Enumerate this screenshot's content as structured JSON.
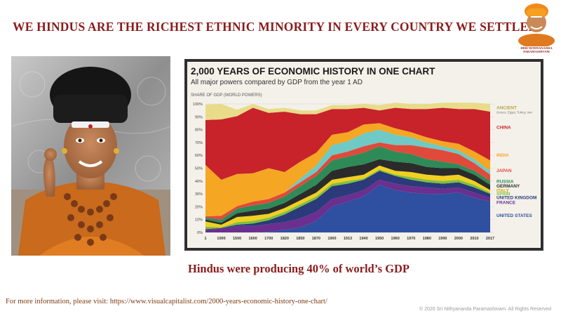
{
  "slide": {
    "title": "WE HINDUS ARE THE RICHEST ETHNIC MINORITY IN EVERY COUNTRY WE SETTLED",
    "logo_text": "HDH NITHYANANDA PARAMASHIVAM",
    "caption": "Hindus were producing 40% of world’s GDP",
    "more_info": "For more information, please visit: https://www.visualcapitalist.com/2000-years-economic-history-one-chart/",
    "copyright": "© 2020 Sri Nithyananda Paramashivam. All Rights Reserved",
    "accent_color": "#8a1c1c"
  },
  "chart_data": {
    "type": "area",
    "title": "2,000 YEARS OF ECONOMIC HISTORY IN ONE CHART",
    "subtitle": "All major powers compared by GDP from the year 1 AD",
    "ylabel": "SHARE OF GDP (WORLD POWERS)",
    "ylim": [
      0,
      100
    ],
    "yticks": [
      "0%",
      "10%",
      "20%",
      "30%",
      "40%",
      "50%",
      "60%",
      "70%",
      "80%",
      "90%",
      "100%"
    ],
    "x": [
      "1",
      "1000",
      "1500",
      "1600",
      "1700",
      "1820",
      "1850",
      "1870",
      "1900",
      "1913",
      "1940",
      "1950",
      "1960",
      "1970",
      "1980",
      "1990",
      "2000",
      "2010",
      "2017"
    ],
    "series": [
      {
        "name": "UNITED STATES",
        "color": "#2f4fa0",
        "values": [
          0,
          0,
          0,
          0,
          0.5,
          2,
          4,
          9,
          20,
          24,
          28,
          37,
          33,
          31,
          30,
          30,
          31,
          27,
          24
        ]
      },
      {
        "name": "FRANCE",
        "color": "#6b2f8f",
        "values": [
          2,
          3,
          5,
          5,
          6,
          6,
          7,
          7,
          6,
          5,
          5,
          4,
          5,
          5,
          5,
          4,
          4,
          4,
          3
        ]
      },
      {
        "name": "UNITED KINGDOM",
        "color": "#2a3a7a",
        "values": [
          0.5,
          0.5,
          1,
          2,
          3,
          6,
          9,
          10,
          10,
          9,
          8,
          7,
          6,
          5,
          4,
          4,
          4,
          4,
          3
        ]
      },
      {
        "name": "SPAIN",
        "color": "#7fbf3f",
        "values": [
          2,
          0.5,
          2,
          2,
          2,
          2,
          2,
          2,
          2,
          2,
          1,
          1,
          1,
          2,
          2,
          2,
          2,
          2,
          1
        ]
      },
      {
        "name": "ITALY",
        "color": "#f0d020",
        "values": [
          4,
          2,
          4,
          4,
          3,
          3,
          3,
          3,
          3,
          3,
          3,
          3,
          3,
          4,
          4,
          4,
          4,
          3,
          2
        ]
      },
      {
        "name": "GERMANY",
        "color": "#2b2b2b",
        "values": [
          1.5,
          1.5,
          3,
          4,
          4,
          4,
          5,
          6,
          7,
          8,
          8,
          5,
          7,
          7,
          6,
          6,
          5,
          5,
          4
        ]
      },
      {
        "name": "RUSSIA",
        "color": "#2e8b57",
        "values": [
          1.5,
          2.5,
          3.5,
          4,
          4.5,
          5,
          6,
          7,
          8,
          8,
          9,
          10,
          8,
          7,
          6,
          5,
          3,
          3,
          3
        ]
      },
      {
        "name": "JAPAN",
        "color": "#e04a3a",
        "values": [
          1,
          3,
          2,
          3,
          3,
          3,
          3,
          3,
          4,
          4,
          5,
          3,
          5,
          7,
          9,
          9,
          8,
          6,
          5
        ]
      },
      {
        "name": "",
        "color": "#6fc9c4",
        "values": [
          0,
          0,
          0,
          0,
          0,
          0,
          3,
          5,
          8,
          8,
          10,
          10,
          8,
          6,
          4,
          3,
          3,
          3,
          3
        ]
      },
      {
        "name": "INDIA",
        "color": "#f5a623",
        "values": [
          40,
          28,
          25,
          22,
          24,
          16,
          13,
          10,
          8,
          7,
          7,
          5,
          5,
          4,
          4,
          4,
          5,
          6,
          8
        ]
      },
      {
        "name": "CHINA",
        "color": "#c8222a",
        "values": [
          35,
          47,
          45,
          51,
          43,
          47,
          37,
          30,
          20,
          18,
          13,
          10,
          16,
          18,
          22,
          26,
          27,
          33,
          38
        ]
      },
      {
        "name": "ANCIENT",
        "note": "Greece, Egypt, Turkey, Iran",
        "color": "#e8dc8a",
        "values": [
          12,
          12,
          5,
          3,
          3,
          3,
          3,
          3,
          3,
          3,
          3,
          4,
          4,
          4,
          4,
          4,
          5,
          5,
          6
        ]
      }
    ],
    "legend_placement": "right",
    "grid": true
  }
}
